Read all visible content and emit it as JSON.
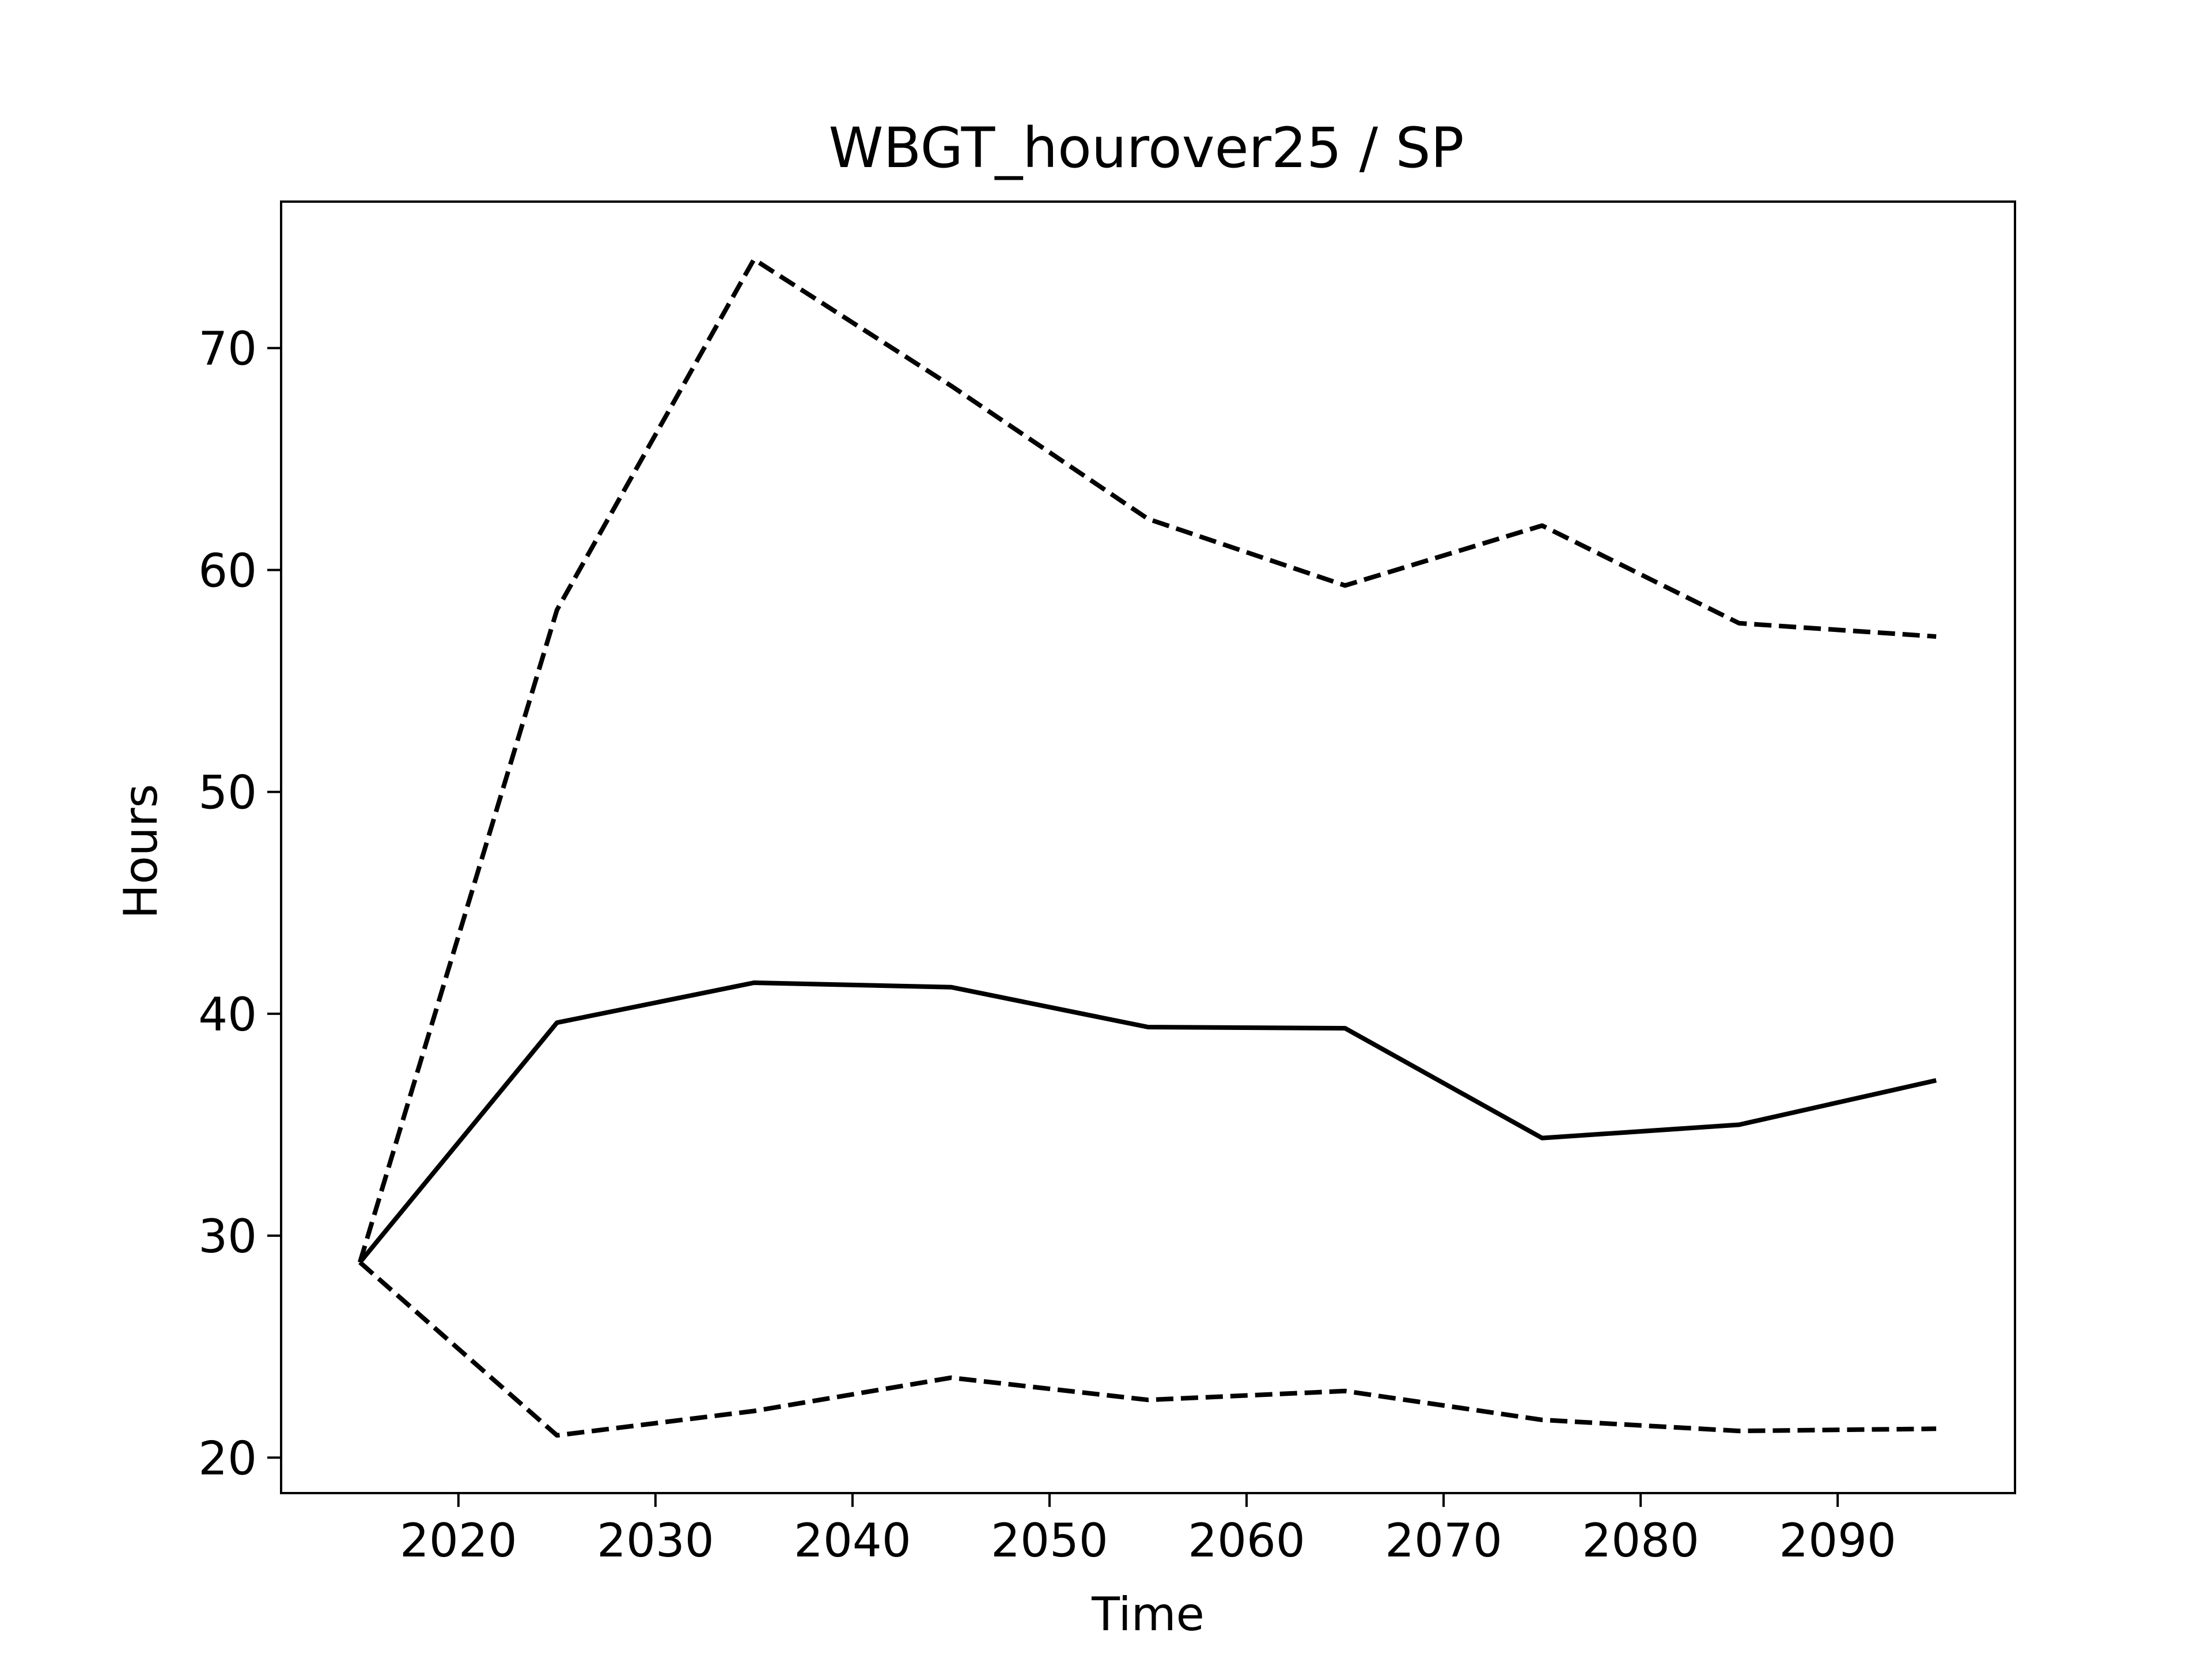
{
  "chart_data": {
    "type": "line",
    "title": "WBGT_hourover25 / SP",
    "xlabel": "Time",
    "ylabel": "Hours",
    "xlim": [
      2011,
      2099
    ],
    "ylim": [
      18.4,
      76.6
    ],
    "x_ticks": [
      2020,
      2030,
      2040,
      2050,
      2060,
      2070,
      2080,
      2090
    ],
    "y_ticks": [
      20,
      30,
      40,
      50,
      60,
      70
    ],
    "grid": false,
    "legend": "none",
    "x": [
      2015,
      2025,
      2035,
      2045,
      2055,
      2065,
      2075,
      2085,
      2095
    ],
    "series": [
      {
        "style": "solid",
        "color": "#000000",
        "values": [
          28.8,
          39.6,
          41.4,
          41.2,
          39.4,
          39.35,
          34.4,
          35.0,
          37.0
        ]
      },
      {
        "style": "dashed",
        "color": "#000000",
        "values": [
          28.8,
          58.2,
          74.0,
          68.3,
          62.3,
          59.3,
          62.0,
          57.6,
          57.0
        ]
      },
      {
        "style": "dashed",
        "color": "#000000",
        "values": [
          28.8,
          21.0,
          22.1,
          23.6,
          22.6,
          23.0,
          21.7,
          21.2,
          21.3
        ]
      }
    ]
  }
}
